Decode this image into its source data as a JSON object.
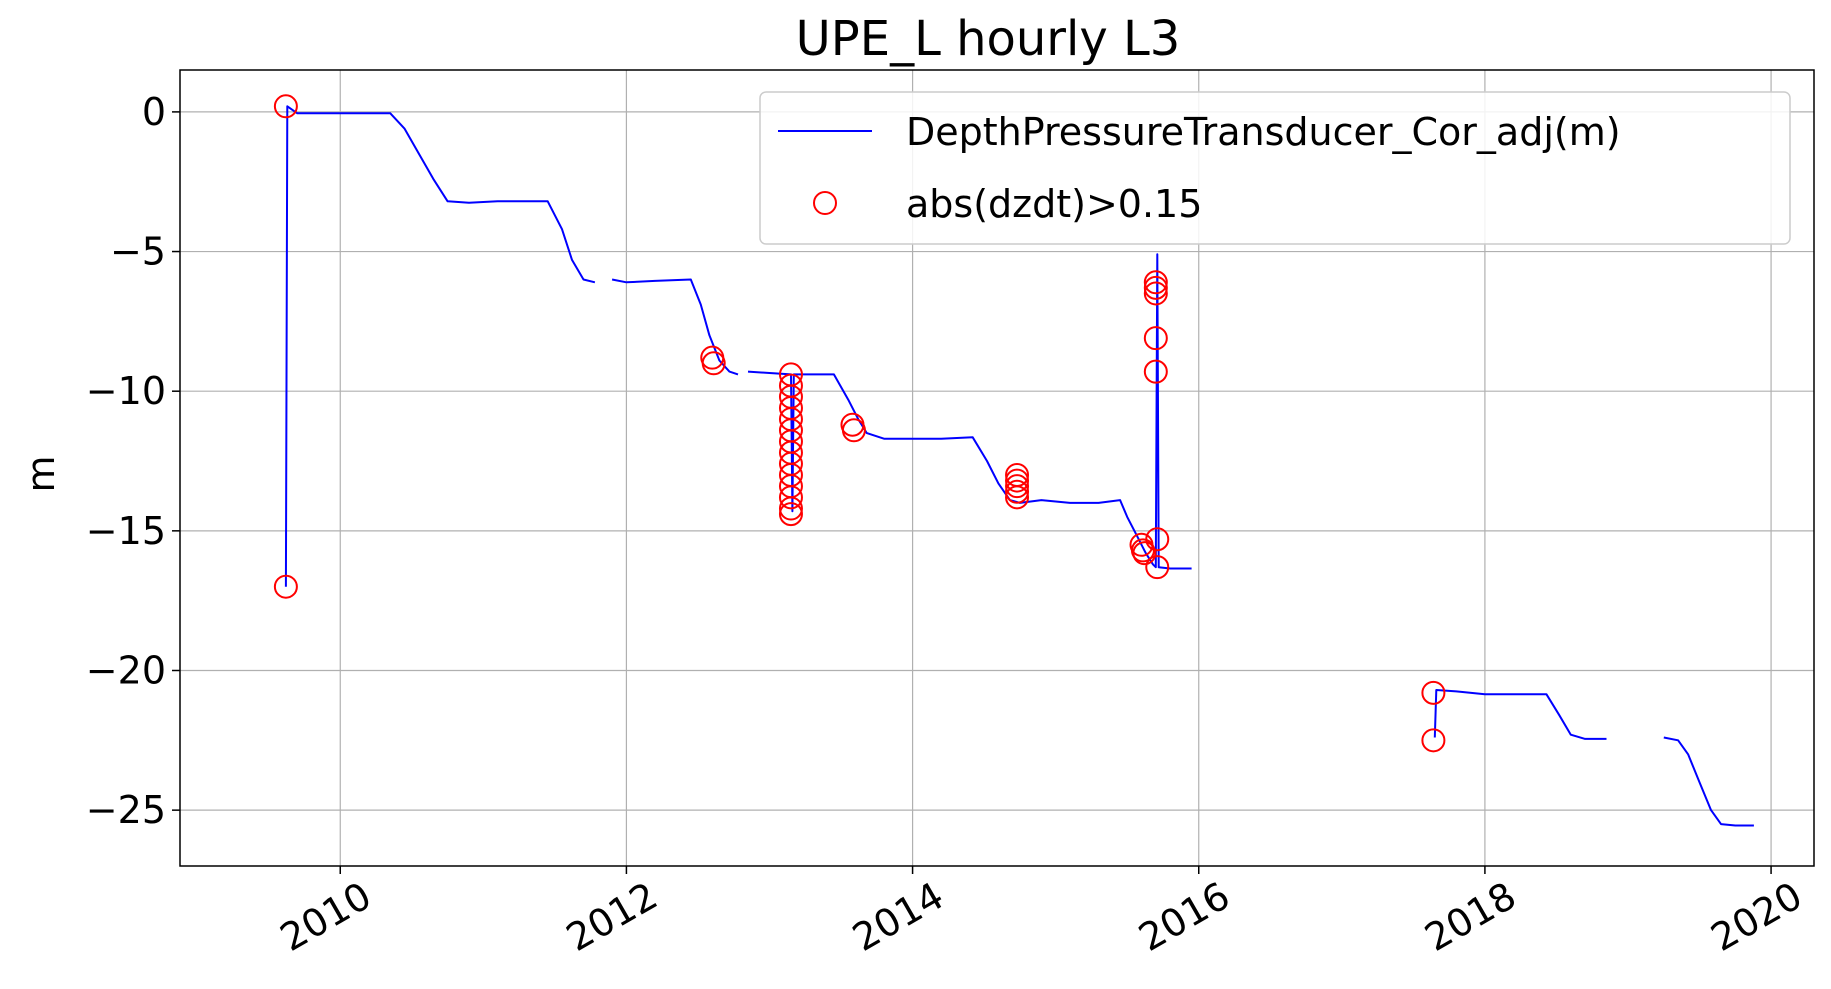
{
  "chart_data": {
    "type": "line",
    "title": "UPE_L hourly L3",
    "xlabel": "",
    "ylabel": "m",
    "xlim": [
      2008.88,
      2020.3
    ],
    "ylim": [
      -27.0,
      1.5
    ],
    "x_ticks": [
      2010,
      2012,
      2014,
      2016,
      2018,
      2020
    ],
    "x_tick_labels": [
      "2010",
      "2012",
      "2014",
      "2016",
      "2018",
      "2020"
    ],
    "y_ticks": [
      0,
      -5,
      -10,
      -15,
      -20,
      -25
    ],
    "y_tick_labels": [
      "0",
      "−5",
      "−10",
      "−15",
      "−20",
      "−25"
    ],
    "grid": true,
    "legend_position": "top-right",
    "colors": {
      "line": "#0000ff",
      "marker": "#ff0000",
      "grid": "#b0b0b0"
    },
    "series": [
      {
        "name": "DepthPressureTransducer_Cor_adj(m)",
        "kind": "line",
        "segments": [
          [
            [
              2009.62,
              -17.0
            ],
            [
              2009.63,
              0.2
            ],
            [
              2009.7,
              -0.05
            ],
            [
              2010.0,
              -0.05
            ],
            [
              2010.35,
              -0.05
            ],
            [
              2010.45,
              -0.6
            ],
            [
              2010.55,
              -1.5
            ],
            [
              2010.65,
              -2.4
            ],
            [
              2010.75,
              -3.2
            ],
            [
              2010.9,
              -3.25
            ],
            [
              2011.1,
              -3.2
            ],
            [
              2011.45,
              -3.2
            ],
            [
              2011.55,
              -4.2
            ],
            [
              2011.62,
              -5.3
            ],
            [
              2011.7,
              -6.0
            ],
            [
              2011.78,
              -6.1
            ]
          ],
          [
            [
              2011.9,
              -6.0
            ],
            [
              2012.0,
              -6.1
            ],
            [
              2012.2,
              -6.05
            ],
            [
              2012.45,
              -6.0
            ],
            [
              2012.52,
              -6.9
            ],
            [
              2012.58,
              -8.0
            ],
            [
              2012.65,
              -8.9
            ],
            [
              2012.72,
              -9.3
            ],
            [
              2012.78,
              -9.4
            ]
          ],
          [
            [
              2012.85,
              -9.3
            ],
            [
              2013.0,
              -9.35
            ],
            [
              2013.15,
              -9.4
            ],
            [
              2013.16,
              -14.3
            ],
            [
              2013.17,
              -9.4
            ],
            [
              2013.3,
              -9.4
            ],
            [
              2013.45,
              -9.4
            ],
            [
              2013.55,
              -10.3
            ],
            [
              2013.62,
              -11.0
            ],
            [
              2013.68,
              -11.5
            ],
            [
              2013.8,
              -11.7
            ],
            [
              2014.0,
              -11.7
            ],
            [
              2014.2,
              -11.7
            ],
            [
              2014.42,
              -11.65
            ],
            [
              2014.52,
              -12.5
            ],
            [
              2014.6,
              -13.3
            ],
            [
              2014.68,
              -13.9
            ],
            [
              2014.75,
              -14.0
            ],
            [
              2014.9,
              -13.9
            ],
            [
              2015.1,
              -14.0
            ],
            [
              2015.3,
              -14.0
            ],
            [
              2015.45,
              -13.9
            ],
            [
              2015.5,
              -14.5
            ],
            [
              2015.58,
              -15.3
            ],
            [
              2015.63,
              -15.8
            ],
            [
              2015.68,
              -16.2
            ],
            [
              2015.7,
              -16.3
            ],
            [
              2015.71,
              -5.1
            ],
            [
              2015.72,
              -16.3
            ],
            [
              2015.8,
              -16.35
            ],
            [
              2015.95,
              -16.35
            ]
          ]
        ]
      },
      {
        "name": "DepthPressureTransducer_Cor_adj(m)",
        "kind": "line",
        "segments": [
          [
            [
              2017.65,
              -22.4
            ],
            [
              2017.66,
              -20.7
            ],
            [
              2017.8,
              -20.75
            ],
            [
              2018.0,
              -20.85
            ],
            [
              2018.2,
              -20.85
            ],
            [
              2018.43,
              -20.85
            ],
            [
              2018.52,
              -21.6
            ],
            [
              2018.6,
              -22.3
            ],
            [
              2018.7,
              -22.45
            ],
            [
              2018.85,
              -22.45
            ]
          ],
          [
            [
              2019.25,
              -22.4
            ],
            [
              2019.35,
              -22.5
            ],
            [
              2019.42,
              -23.0
            ],
            [
              2019.5,
              -24.0
            ],
            [
              2019.58,
              -25.0
            ],
            [
              2019.65,
              -25.5
            ],
            [
              2019.75,
              -25.55
            ],
            [
              2019.88,
              -25.55
            ]
          ]
        ]
      },
      {
        "name": "abs(dzdt)>0.15",
        "kind": "scatter",
        "points": [
          [
            2009.62,
            0.2
          ],
          [
            2009.62,
            -17.0
          ],
          [
            2012.6,
            -8.8
          ],
          [
            2012.61,
            -9.0
          ],
          [
            2013.15,
            -9.4
          ],
          [
            2013.15,
            -9.8
          ],
          [
            2013.15,
            -10.2
          ],
          [
            2013.15,
            -10.6
          ],
          [
            2013.15,
            -11.0
          ],
          [
            2013.15,
            -11.4
          ],
          [
            2013.15,
            -11.8
          ],
          [
            2013.15,
            -12.2
          ],
          [
            2013.15,
            -12.6
          ],
          [
            2013.15,
            -13.0
          ],
          [
            2013.15,
            -13.4
          ],
          [
            2013.15,
            -13.8
          ],
          [
            2013.15,
            -14.2
          ],
          [
            2013.15,
            -14.4
          ],
          [
            2013.58,
            -11.2
          ],
          [
            2013.59,
            -11.4
          ],
          [
            2014.73,
            -13.0
          ],
          [
            2014.73,
            -13.2
          ],
          [
            2014.73,
            -13.4
          ],
          [
            2014.73,
            -13.6
          ],
          [
            2014.73,
            -13.8
          ],
          [
            2015.6,
            -15.5
          ],
          [
            2015.61,
            -15.7
          ],
          [
            2015.62,
            -15.8
          ],
          [
            2015.7,
            -6.1
          ],
          [
            2015.7,
            -6.3
          ],
          [
            2015.7,
            -6.5
          ],
          [
            2015.7,
            -8.1
          ],
          [
            2015.7,
            -9.3
          ],
          [
            2015.71,
            -15.3
          ],
          [
            2015.71,
            -16.3
          ],
          [
            2017.64,
            -20.8
          ],
          [
            2017.64,
            -22.5
          ]
        ]
      }
    ],
    "legend": [
      {
        "label": "DepthPressureTransducer_Cor_adj(m)",
        "marker": "line"
      },
      {
        "label": "abs(dzdt)>0.15",
        "marker": "circle"
      }
    ]
  }
}
